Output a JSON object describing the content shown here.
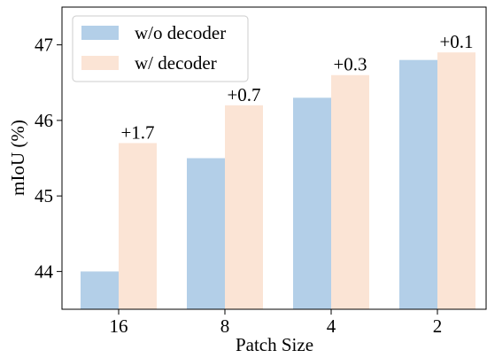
{
  "chart_data": {
    "type": "bar",
    "title": "",
    "xlabel": "Patch Size",
    "ylabel": "mIoU (%)",
    "categories": [
      "16",
      "8",
      "4",
      "2"
    ],
    "ylim": [
      43.5,
      47.5
    ],
    "yticks": [
      44,
      45,
      46,
      47
    ],
    "series": [
      {
        "name": "w/o decoder",
        "values": [
          44.0,
          45.5,
          46.3,
          46.8
        ],
        "color": "#b3cfe8"
      },
      {
        "name": "w/ decoder",
        "values": [
          45.7,
          46.2,
          46.6,
          46.9
        ],
        "color": "#fbe4d5"
      }
    ],
    "annotations": [
      "+1.7",
      "+0.7",
      "+0.3",
      "+0.1"
    ],
    "legend": "top-left",
    "grid": false
  }
}
